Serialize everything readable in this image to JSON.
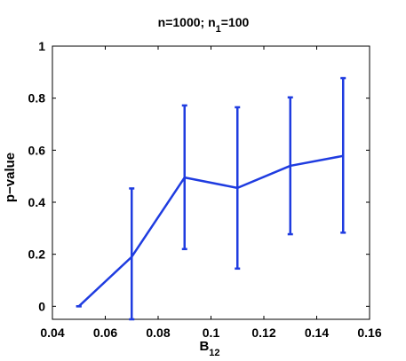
{
  "chart_data": {
    "type": "line",
    "title": "n=1000; n",
    "title_subscript": "1",
    "title_suffix": "=100",
    "xlabel": "B",
    "xlabel_subscript": "12",
    "ylabel": "p−value",
    "xlim": [
      0.04,
      0.16
    ],
    "ylim": [
      -0.05,
      1.0
    ],
    "xticks": [
      0.04,
      0.06,
      0.08,
      0.1,
      0.12,
      0.14,
      0.16
    ],
    "xtick_labels": [
      "0.04",
      "0.06",
      "0.08",
      "0.1",
      "0.12",
      "0.14",
      "0.16"
    ],
    "yticks": [
      0,
      0.2,
      0.4,
      0.6,
      0.8,
      1
    ],
    "ytick_labels": [
      "0",
      "0.2",
      "0.4",
      "0.6",
      "0.8",
      "1"
    ],
    "grid": false,
    "series": [
      {
        "color": "#1f3ce0",
        "x": [
          0.05,
          0.07,
          0.09,
          0.11,
          0.13,
          0.15
        ],
        "y": [
          0.0,
          0.19,
          0.495,
          0.455,
          0.54,
          0.578
        ],
        "err_low": [
          0.0,
          -0.05,
          0.22,
          0.145,
          0.277,
          0.283
        ],
        "err_high": [
          0.0,
          0.453,
          0.772,
          0.765,
          0.803,
          0.877
        ]
      }
    ]
  }
}
